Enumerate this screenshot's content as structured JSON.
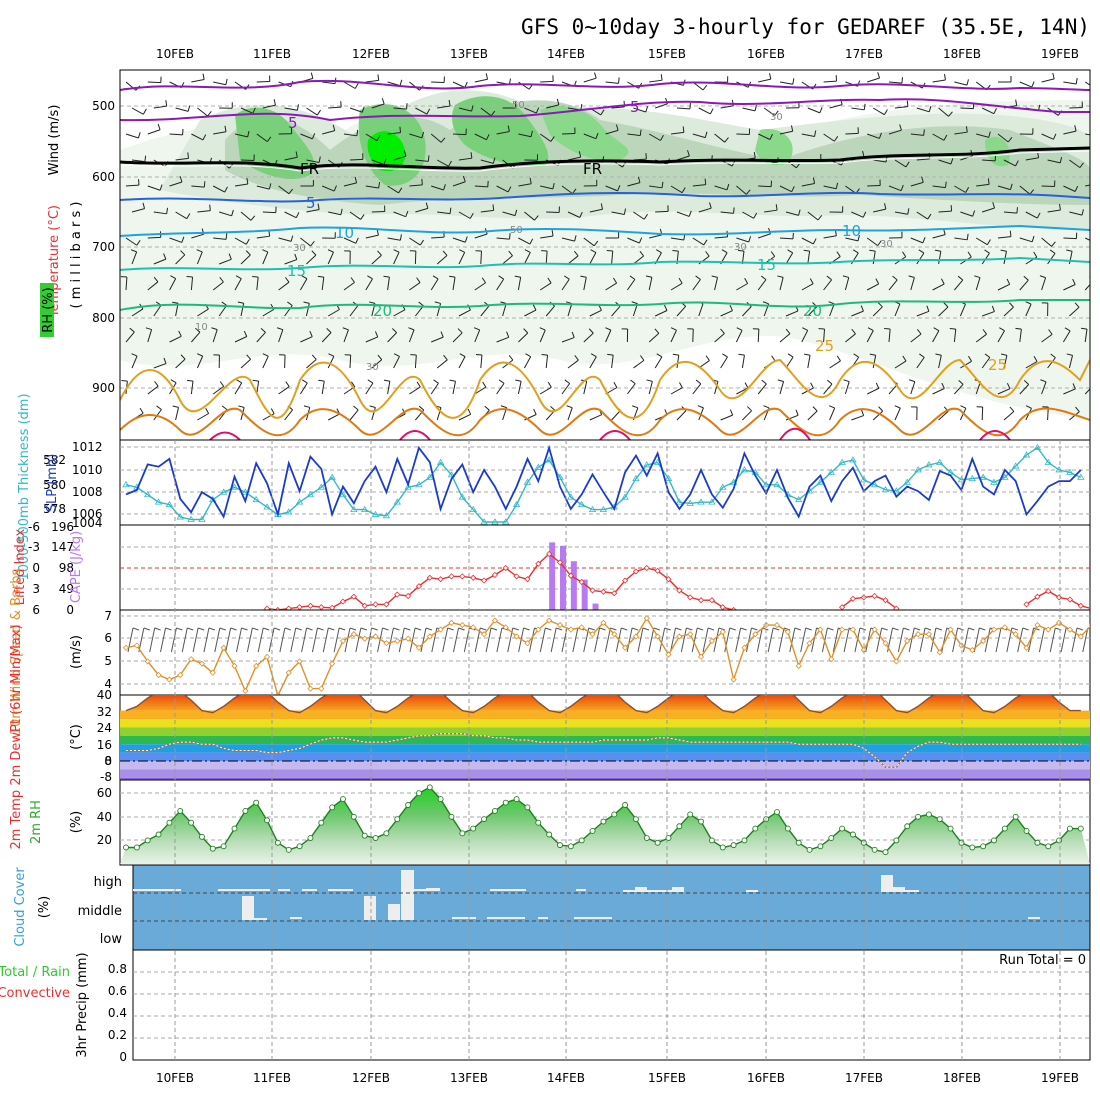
{
  "title": "GFS 0~10day 3-hourly for GEDAREF (35.5E, 14N)",
  "dates": [
    "10FEB",
    "11FEB",
    "12FEB",
    "13FEB",
    "14FEB",
    "15FEB",
    "16FEB",
    "17FEB",
    "18FEB",
    "19FEB"
  ],
  "run_total": "Run Total = 0",
  "colors": {
    "rh_green": "#33cc33",
    "temp_violet": "#8a1ab8",
    "freeze": "#000000",
    "slp": "#1a3ccc",
    "thickness": "#33b8c8",
    "li": "#e83030",
    "cape": "#b87af0",
    "wind": "#e0902a",
    "rh2m": "#30a830",
    "cloud": "#6aaad8"
  },
  "labels": {
    "wind": "Wind (m/s)",
    "temperature": "Temperature (°C)",
    "rh": "RH (%)",
    "millibars": "( m i l l i b a r s )",
    "thickness": "1000-500mb Thickness (dm)",
    "slp": "SLP (mb)",
    "li": "Lifted Index",
    "cape": "CAPE (J/kg)",
    "wind10": "10m Wind Speed & Barbs",
    "wind10_unit": "(m/s)",
    "temp2m": "2m Temp 2m DewPt (6hr Min/Max)",
    "temp2m_unit": "(°C)",
    "rh2m": "2m RH",
    "rh2m_unit": "(%)",
    "cloud": "Cloud Cover",
    "cloud_unit": "(%)",
    "precip_total": "Total / Rain",
    "precip_conv": "Convective",
    "precip_axis": "3hr Precip (mm)"
  },
  "chart_data": [
    {
      "type": "heatmap",
      "panel": "upper-air cross section",
      "y_label": "millibars",
      "y_ticks": [
        "500",
        "600",
        "700",
        "800",
        "900"
      ],
      "contours": {
        "temperature": [
          "5",
          "5",
          "FR",
          "FR",
          "5",
          "10",
          "10",
          "15",
          "15",
          "20",
          "20",
          "25",
          "25"
        ],
        "rh": [
          "50",
          "30",
          "50",
          "30",
          "10",
          "30",
          "30",
          "30"
        ]
      }
    },
    {
      "type": "line",
      "panel": "slp-thickness",
      "ylabel_left": "1000-500mb Thickness (dm)",
      "ylabel_right": "SLP (mb)",
      "left_ticks": [
        "582",
        "580",
        "578"
      ],
      "right_ticks": [
        "1012",
        "1010",
        "1008",
        "1006",
        "1004"
      ],
      "series": [
        {
          "name": "SLP (mb)",
          "values": [
            1007.8,
            1008.2,
            1010.5,
            1010.3,
            1011.0,
            1007.4,
            1006.2,
            1008.0,
            1007.4,
            1005.8,
            1009.4,
            1007.2,
            1010.6,
            1008.8,
            1006.0,
            1010.6,
            1008.1,
            1011.2,
            1010.1,
            1006.0,
            1008.5,
            1007.0,
            1009.0,
            1010.3,
            1008.0,
            1011.0,
            1008.7,
            1012.0,
            1010.7,
            1006.5,
            1009.2,
            1010.5,
            1008.0,
            1010.0,
            1008.5,
            1006.5,
            1008.5,
            1011.0,
            1009.0,
            1012.0,
            1008.5,
            1006.5,
            1007.8,
            1009.6,
            1008.0,
            1006.5,
            1009.8,
            1011.3,
            1009.5,
            1011.5,
            1008.0,
            1006.5,
            1007.8,
            1010.0,
            1007.8,
            1006.6,
            1008.3,
            1011.5,
            1009.5,
            1007.9,
            1010.0,
            1007.5,
            1005.8,
            1008.5,
            1009.5,
            1007.2,
            1009.0,
            1010.2,
            1008.1,
            1009.0,
            1009.5,
            1007.6,
            1008.5,
            1008.1,
            1007.3,
            1009.9,
            1009.5,
            1008.2,
            1011.0,
            1008.5,
            1007.8,
            1010.0,
            1009.0,
            1006.0,
            1007.2,
            1008.5,
            1009.0,
            1009.0,
            1010.0
          ]
        },
        {
          "name": "1000-500mb Thickness (dm)",
          "values": [
            580.0,
            579.8,
            579.2,
            578.6,
            578.4,
            577.4,
            577.2,
            577.2,
            578.8,
            579.4,
            579.8,
            579.4,
            578.8,
            578.2,
            577.6,
            577.8,
            578.6,
            579.2,
            579.8,
            580.6,
            579.2,
            578.0,
            578.0,
            577.6,
            577.5,
            578.6,
            579.8,
            580.0,
            580.6,
            581.8,
            580.8,
            579.0,
            578.0,
            577.0,
            577.0,
            577.0,
            578.4,
            580.2,
            581.4,
            582.0,
            580.6,
            579.0,
            578.4,
            578.0,
            578.0,
            578.2,
            579.0,
            580.5,
            581.6,
            581.8,
            580.5,
            578.6,
            578.5,
            578.6,
            578.6,
            579.8,
            580.2,
            581.2,
            581.0,
            580.0,
            580.0,
            579.2,
            578.8,
            579.5,
            580.2,
            581.0,
            581.8,
            582.0,
            580.4,
            580.0,
            579.6,
            579.5,
            580.2,
            581.2,
            581.6,
            581.8,
            581.0,
            580.4,
            580.5,
            580.6,
            580.2,
            580.6,
            581.5,
            582.4,
            583.0,
            581.8,
            581.2,
            581.0,
            580.6
          ]
        }
      ]
    },
    {
      "type": "bar",
      "panel": "lifted-index-cape",
      "ylabel_left": "Lifted Index",
      "ylabel_right": "CAPE (J/kg)",
      "left_ticks": [
        "-6",
        "-3",
        "0",
        "3",
        "6"
      ],
      "right_ticks": [
        "196",
        "147",
        "98",
        "49",
        "0"
      ],
      "series": [
        {
          "name": "Lifted Index",
          "values": [
            null,
            null,
            null,
            null,
            null,
            null,
            null,
            null,
            null,
            null,
            null,
            null,
            null,
            5.8,
            6.0,
            5.8,
            5.6,
            5.4,
            5.6,
            5.7,
            4.8,
            4.1,
            5.4,
            5.2,
            5.2,
            3.8,
            4.0,
            2.6,
            1.4,
            1.6,
            1.2,
            1.2,
            1.4,
            1.8,
            1.0,
            0.0,
            1.2,
            1.6,
            -0.6,
            -2.0,
            -0.8,
            1.1,
            2.0,
            3.2,
            3.4,
            3.6,
            1.8,
            0.5,
            0.0,
            0.4,
            1.6,
            3.2,
            4.2,
            4.6,
            4.6,
            5.6,
            6.0,
            null,
            null,
            null,
            null,
            null,
            null,
            null,
            null,
            null,
            5.6,
            4.4,
            4.2,
            4.0,
            4.6,
            5.8,
            null,
            null,
            null,
            null,
            null,
            null,
            null,
            null,
            null,
            null,
            null,
            5.2,
            4.1,
            3.3,
            4.2,
            4.5,
            5.4,
            5.8,
            null,
            null,
            null,
            null,
            null,
            6.0
          ]
        },
        {
          "name": "CAPE (J/kg)",
          "values": [
            0,
            0,
            0,
            0,
            0,
            0,
            0,
            0,
            0,
            0,
            0,
            0,
            0,
            0,
            0,
            0,
            0,
            0,
            0,
            0,
            0,
            0,
            0,
            0,
            0,
            0,
            0,
            0,
            0,
            0,
            0,
            0,
            0,
            0,
            0,
            0,
            0,
            0,
            0,
            158,
            150,
            114,
            71,
            15,
            0,
            0,
            0,
            0,
            0,
            0,
            0,
            0,
            0,
            0,
            0,
            0,
            0,
            0,
            0,
            0,
            0,
            0,
            0,
            0,
            0,
            0,
            0,
            0,
            0,
            0,
            0,
            0,
            0,
            0,
            0,
            0,
            0,
            0,
            0,
            0,
            0,
            0,
            0,
            0,
            0,
            0,
            0,
            0,
            0
          ]
        }
      ]
    },
    {
      "type": "line",
      "panel": "10m-wind",
      "ylabel": "10m Wind Speed & Barbs (m/s)",
      "y_ticks": [
        "7",
        "6",
        "5",
        "4"
      ],
      "series": [
        {
          "name": "10m Wind Speed",
          "values": [
            5.6,
            5.7,
            5.0,
            4.4,
            4.2,
            4.4,
            5.1,
            4.9,
            4.5,
            5.6,
            4.8,
            3.7,
            4.8,
            5.2,
            3.5,
            4.5,
            5.0,
            3.8,
            3.8,
            4.9,
            5.9,
            6.2,
            6.0,
            6.1,
            5.8,
            5.9,
            6.0,
            5.6,
            6.1,
            6.4,
            6.7,
            6.6,
            6.5,
            6.2,
            6.8,
            6.5,
            6.1,
            5.8,
            6.4,
            6.8,
            6.6,
            6.4,
            6.5,
            6.2,
            6.7,
            6.2,
            5.6,
            6.1,
            6.9,
            6.1,
            5.3,
            6.1,
            6.2,
            5.2,
            5.9,
            6.3,
            4.2,
            5.6,
            6.2,
            6.6,
            6.6,
            6.3,
            4.8,
            5.8,
            6.4,
            5.1,
            6.4,
            6.4,
            5.5,
            6.4,
            5.8,
            5.0,
            5.9,
            6.2,
            6.2,
            5.4,
            6.4,
            5.7,
            5.5,
            5.9,
            6.4,
            6.5,
            6.2,
            5.6,
            6.6,
            6.4,
            6.7,
            6.4,
            6.1,
            6.6,
            5.7,
            5.6,
            5.6
          ]
        }
      ]
    },
    {
      "type": "area",
      "panel": "2m-temperature",
      "ylabel": "2m Temp 2m DewPt (6hr Min/Max) (°C)",
      "y_ticks": [
        "40",
        "32",
        "24",
        "16",
        "8",
        "0",
        "-8"
      ],
      "series": [
        {
          "name": "2m Temp",
          "values": [
            24,
            26,
            30,
            33,
            34,
            33,
            29,
            24,
            23,
            26,
            30,
            33,
            34,
            33,
            28,
            24,
            23,
            26,
            30,
            33,
            35,
            34,
            29,
            24,
            23,
            26,
            30,
            33,
            34,
            33,
            28,
            24,
            23,
            26,
            30,
            33,
            34,
            33,
            28,
            24,
            23,
            26,
            30,
            33,
            34,
            33,
            28,
            24,
            23,
            26,
            30,
            33,
            34,
            33,
            28,
            24,
            23,
            26,
            30,
            33,
            35,
            34,
            29,
            24,
            23,
            26,
            30,
            33,
            35,
            34,
            29,
            24,
            23,
            26,
            30,
            33,
            35,
            34,
            29,
            24,
            23,
            26,
            30,
            33,
            34,
            33,
            28,
            24,
            24
          ]
        },
        {
          "name": "2m DewPt",
          "values": [
            5,
            5,
            5,
            6,
            8,
            9,
            9,
            8,
            8,
            6,
            5,
            5,
            5,
            4,
            4,
            5,
            6,
            8,
            10,
            11,
            11,
            10,
            9,
            9,
            9,
            10,
            11,
            12,
            12,
            13,
            13,
            13,
            12,
            12,
            11,
            11,
            10,
            10,
            9,
            9,
            9,
            9,
            9,
            9,
            10,
            10,
            10,
            10,
            10,
            11,
            11,
            10,
            9,
            9,
            9,
            9,
            9,
            9,
            9,
            9,
            9,
            9,
            8,
            8,
            8,
            8,
            8,
            8,
            6,
            2,
            -3,
            -3,
            4,
            7,
            9,
            9,
            8,
            8,
            8,
            8,
            8,
            8,
            8,
            8,
            8,
            8,
            8,
            8,
            8
          ]
        }
      ]
    },
    {
      "type": "area",
      "panel": "2m-rh",
      "ylabel": "2m RH (%)",
      "y_ticks": [
        "60",
        "40",
        "20"
      ],
      "series": [
        {
          "name": "2m RH",
          "values": [
            14,
            14,
            20,
            25,
            35,
            45,
            35,
            23,
            13,
            15,
            30,
            45,
            52,
            37,
            18,
            12,
            15,
            22,
            35,
            48,
            55,
            40,
            24,
            22,
            26,
            38,
            50,
            60,
            65,
            55,
            40,
            26,
            30,
            38,
            45,
            52,
            55,
            48,
            35,
            25,
            16,
            15,
            20,
            28,
            36,
            42,
            50,
            38,
            22,
            18,
            22,
            32,
            42,
            36,
            20,
            14,
            16,
            20,
            30,
            38,
            44,
            30,
            18,
            12,
            15,
            22,
            30,
            25,
            18,
            12,
            10,
            20,
            32,
            40,
            42,
            38,
            30,
            18,
            14,
            15,
            20,
            30,
            40,
            28,
            18,
            15,
            20,
            30,
            30
          ]
        }
      ]
    },
    {
      "type": "table",
      "panel": "cloud-cover",
      "ylabel": "Cloud Cover (%)",
      "rows": [
        "high",
        "middle",
        "low"
      ]
    },
    {
      "type": "bar",
      "panel": "3hr-precip",
      "ylabel": "3hr Precip (mm)",
      "y_ticks": [
        "0.8",
        "0.6",
        "0.4",
        "0.2",
        "0"
      ],
      "series": [
        {
          "name": "Total / Rain",
          "values": []
        },
        {
          "name": "Convective",
          "values": []
        }
      ]
    }
  ]
}
